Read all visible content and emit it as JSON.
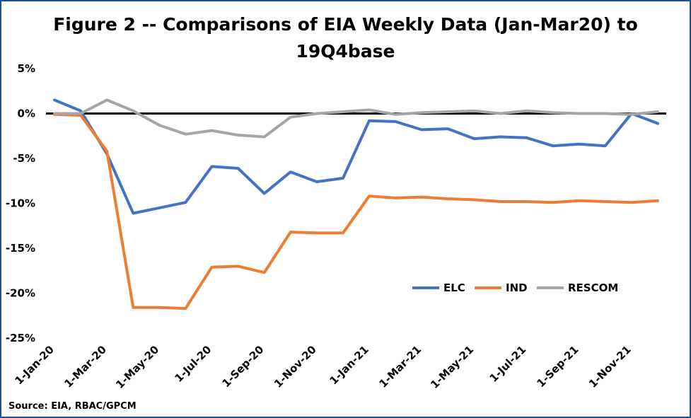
{
  "chart_data": {
    "type": "line",
    "title_line1": "Figure 2 -- Comparisons of EIA Weekly Data (Jan-Mar20) to",
    "title_line2": "19Q4base",
    "source": "Source: EIA, RBAC/GPCM",
    "x": [
      "1-Jan-20",
      "1-Feb-20",
      "1-Mar-20",
      "1-Apr-20",
      "1-May-20",
      "1-Jun-20",
      "1-Jul-20",
      "1-Aug-20",
      "1-Sep-20",
      "1-Oct-20",
      "1-Nov-20",
      "1-Dec-20",
      "1-Jan-21",
      "1-Feb-21",
      "1-Mar-21",
      "1-Apr-21",
      "1-May-21",
      "1-Jun-21",
      "1-Jul-21",
      "1-Aug-21",
      "1-Sep-21",
      "1-Oct-21",
      "1-Nov-21",
      "1-Dec-21"
    ],
    "x_tick_labels": [
      "1-Jan-20",
      "1-Mar-20",
      "1-May-20",
      "1-Jul-20",
      "1-Sep-20",
      "1-Nov-20",
      "1-Jan-21",
      "1-Mar-21",
      "1-May-21",
      "1-Jul-21",
      "1-Sep-21",
      "1-Nov-21"
    ],
    "y_ticks": [
      5,
      0,
      -5,
      -10,
      -15,
      -20,
      -25
    ],
    "y_tick_labels": [
      "5%",
      "0%",
      "-5%",
      "-10%",
      "-15%",
      "-20%",
      "-25%"
    ],
    "ylim": [
      -25,
      5
    ],
    "y_unit": "%",
    "grid": false,
    "zero_line": true,
    "legend_position": "bottom-right",
    "series": [
      {
        "name": "ELC",
        "color": "#4472c4",
        "values": [
          1.5,
          0.3,
          -4.5,
          -11.1,
          -10.5,
          -9.9,
          -5.9,
          -6.1,
          -8.9,
          -6.5,
          -7.6,
          -7.2,
          -0.8,
          -0.9,
          -1.8,
          -1.7,
          -2.8,
          -2.6,
          -2.7,
          -3.6,
          -3.4,
          -3.6,
          0.0,
          -1.1
        ]
      },
      {
        "name": "IND",
        "color": "#ed7d31",
        "values": [
          -0.1,
          -0.2,
          -4.2,
          -21.6,
          -21.6,
          -21.7,
          -17.1,
          -17.0,
          -17.7,
          -13.2,
          -13.3,
          -13.3,
          -9.2,
          -9.4,
          -9.3,
          -9.5,
          -9.6,
          -9.8,
          -9.8,
          -9.9,
          -9.7,
          -9.8,
          -9.9,
          -9.7
        ]
      },
      {
        "name": "RESCOM",
        "color": "#a5a5a5",
        "values": [
          0.0,
          0.0,
          1.5,
          0.3,
          -1.3,
          -2.3,
          -1.9,
          -2.4,
          -2.6,
          -0.4,
          0.0,
          0.2,
          0.4,
          -0.1,
          0.1,
          0.2,
          0.3,
          0.0,
          0.3,
          0.1,
          0.0,
          0.0,
          -0.1,
          0.2
        ]
      }
    ]
  }
}
